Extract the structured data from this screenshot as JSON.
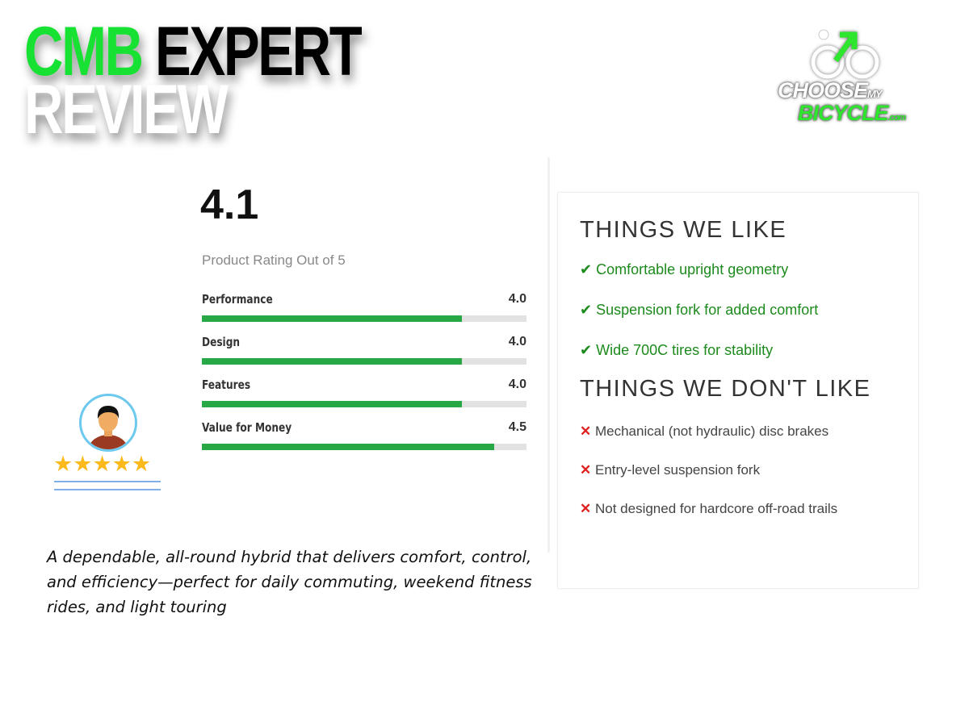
{
  "header": {
    "word1": "CMB",
    "word2": "EXPERT",
    "word3": "REVIEW"
  },
  "logo": {
    "line1": "CHOOSE",
    "line1_small": "MY",
    "line2": "BICYCLE",
    "line2_small": ".com",
    "accent": "#2ee62e"
  },
  "rating": {
    "score": "4.1",
    "subtitle": "Product Rating Out of 5",
    "max": 5,
    "items": [
      {
        "label": "Performance",
        "value": "4.0"
      },
      {
        "label": "Design",
        "value": "4.0"
      },
      {
        "label": "Features",
        "value": "4.0"
      },
      {
        "label": "Value for Money",
        "value": "4.5"
      }
    ]
  },
  "reviewer": {
    "stars": 5,
    "star_color": "#fbb91b"
  },
  "likes": {
    "title": "THINGS WE LIKE",
    "items": [
      "Comfortable upright geometry",
      "Suspension fork for added comfort",
      "Wide 700C tires for stability"
    ]
  },
  "dislikes": {
    "title": "THINGS WE DON'T LIKE",
    "items": [
      "Mechanical (not hydraulic) disc brakes",
      "Entry-level suspension fork",
      "Not designed for hardcore off-road trails"
    ]
  },
  "summary": "A dependable, all-round hybrid that delivers comfort, control, and efficiency—perfect for daily commuting, weekend fitness rides, and light touring"
}
